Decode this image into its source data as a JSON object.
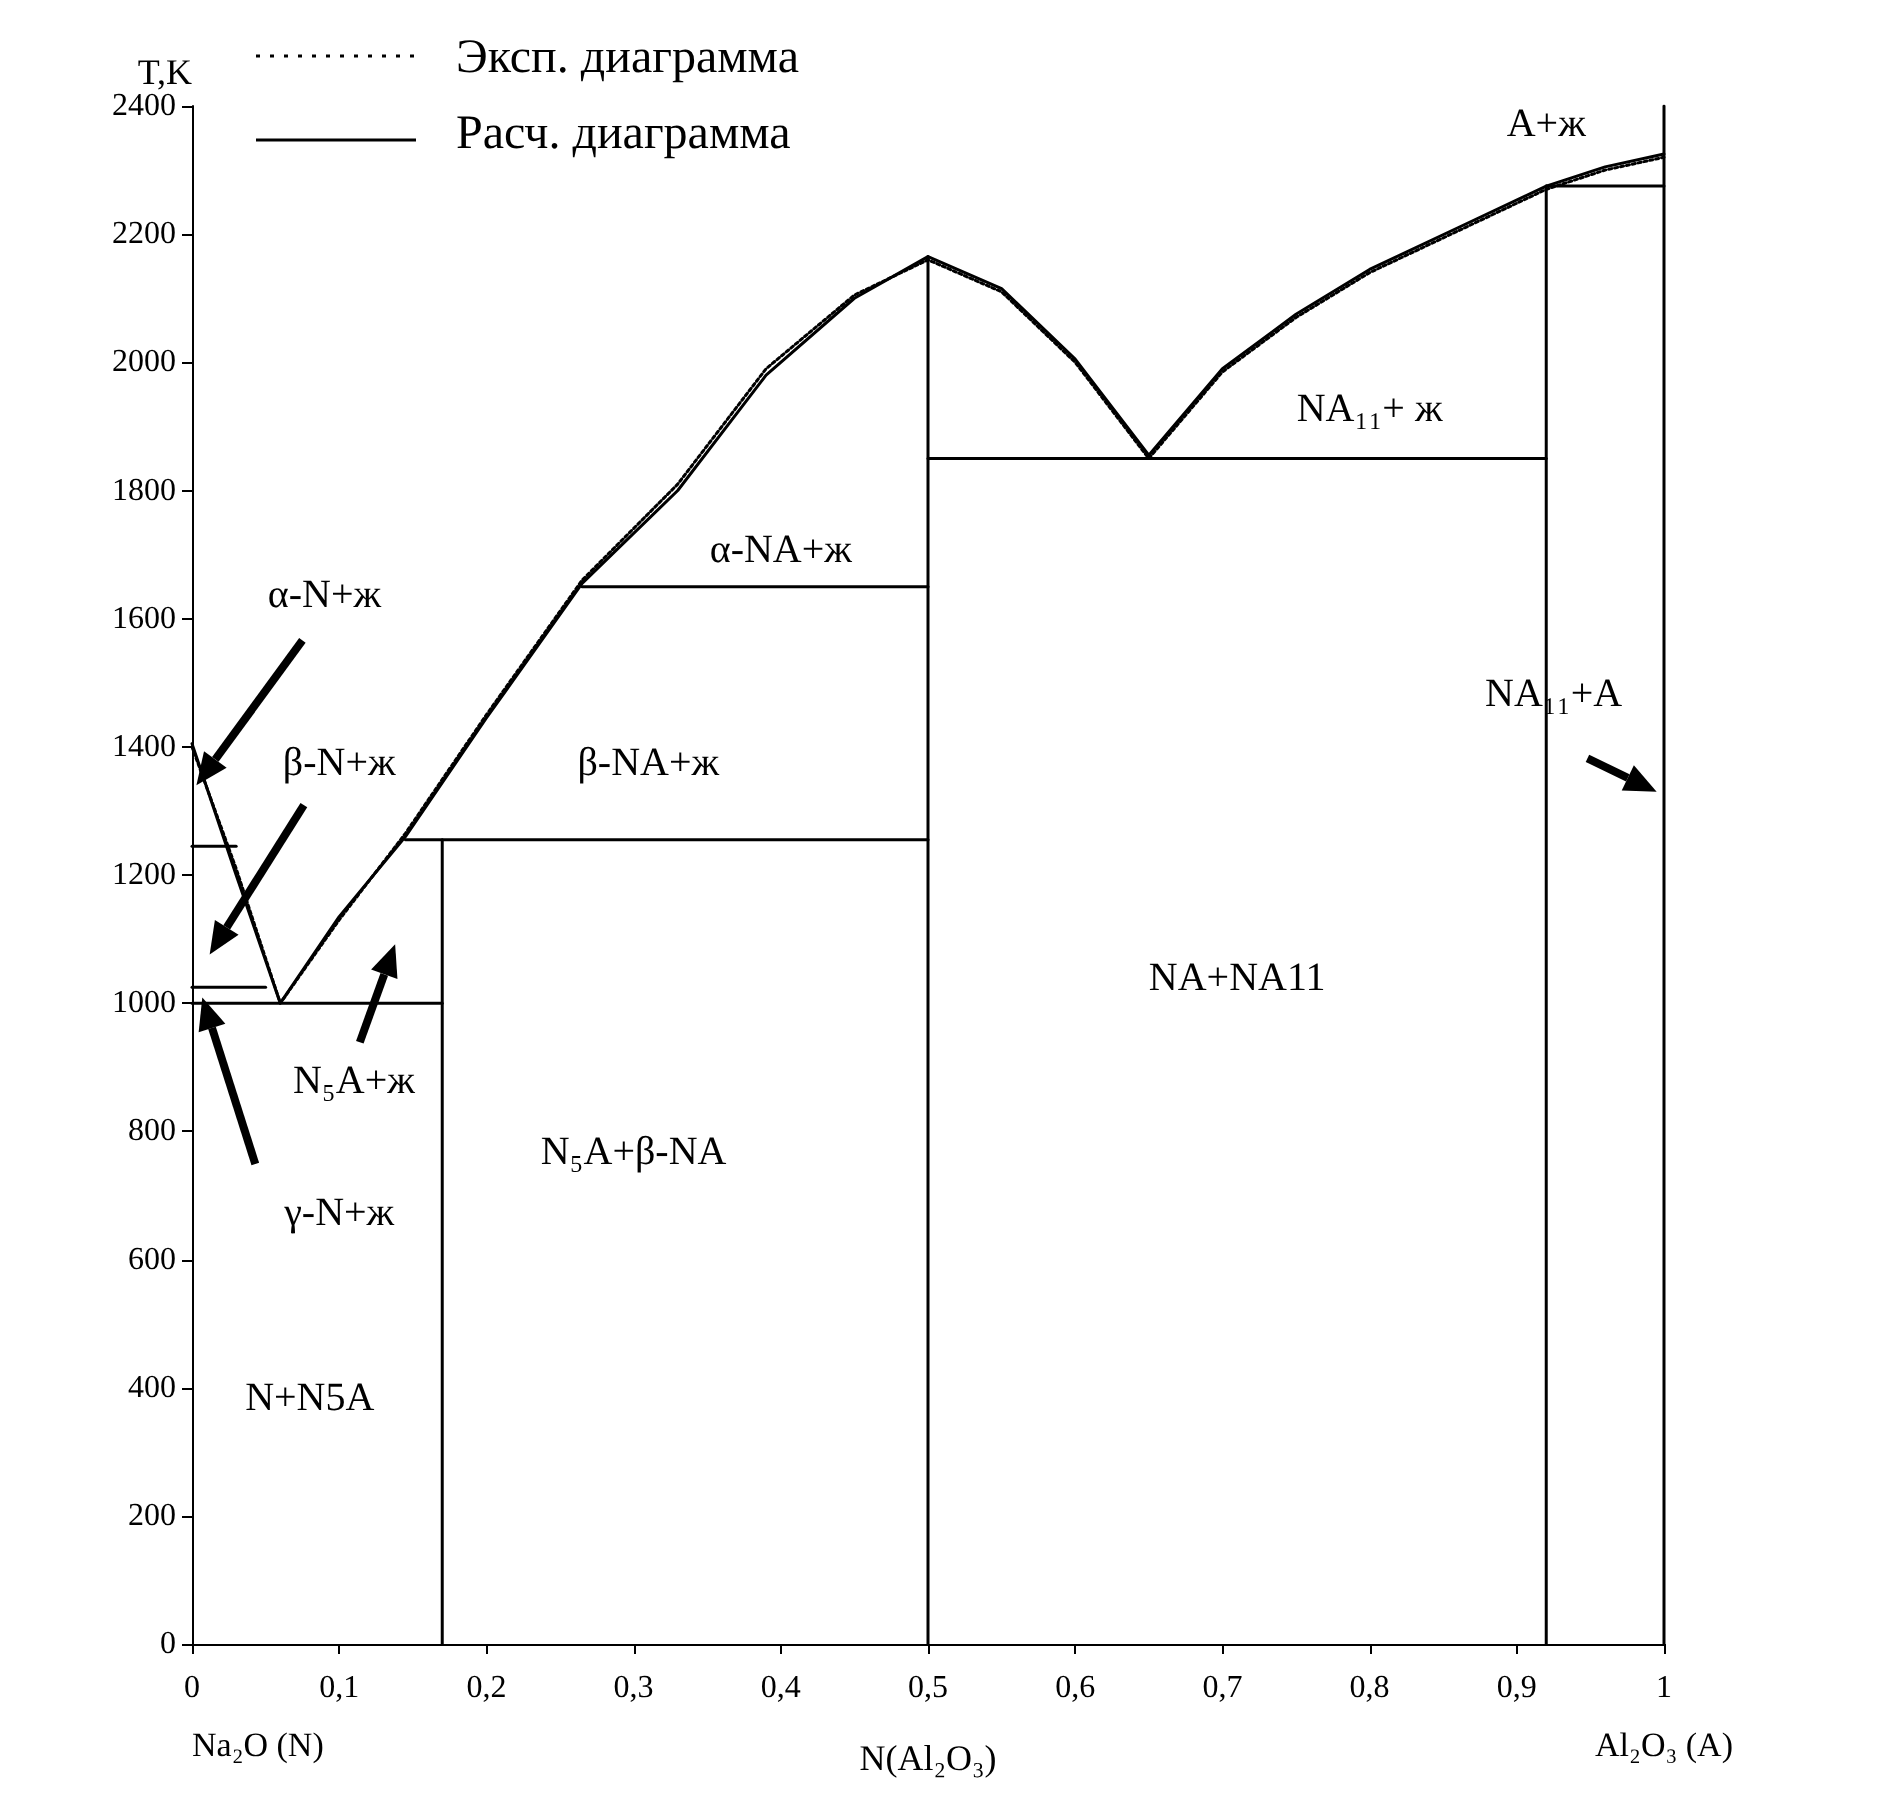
{
  "chart_data": {
    "type": "line",
    "xlabel": "N(Al₂O₃)",
    "ylabel": "T,K",
    "xlim": [
      0,
      1
    ],
    "ylim": [
      0,
      2400
    ],
    "xticks": [
      0,
      {
        "value": 0.1,
        "label": "0,1"
      },
      {
        "value": 0.2,
        "label": "0,2"
      },
      {
        "value": 0.3,
        "label": "0,3"
      },
      {
        "value": 0.4,
        "label": "0,4"
      },
      {
        "value": 0.5,
        "label": "0,5"
      },
      {
        "value": 0.6,
        "label": "0,6"
      },
      {
        "value": 0.7,
        "label": "0,7"
      },
      {
        "value": 0.8,
        "label": "0,8"
      },
      {
        "value": 0.9,
        "label": "0,9"
      },
      1
    ],
    "yticks": [
      0,
      200,
      400,
      600,
      800,
      1000,
      1200,
      1400,
      1600,
      1800,
      2000,
      2200,
      2400
    ],
    "grid": false,
    "legend": "top left",
    "marker": "none",
    "series": [
      {
        "name": "Эксп. диаграмма",
        "color": "#000000",
        "line_style": "dotted",
        "x": [
          0,
          0.03,
          0.06,
          0.1,
          0.145,
          0.2,
          0.265,
          0.33,
          0.39,
          0.45,
          0.5,
          0.55,
          0.6,
          0.65,
          0.7,
          0.75,
          0.8,
          0.86,
          0.92,
          0.96,
          1
        ],
        "values": [
          1400,
          1210,
          1000,
          1130,
          1265,
          1450,
          1660,
          1810,
          1990,
          2105,
          2160,
          2110,
          2000,
          1850,
          1985,
          2070,
          2140,
          2205,
          2270,
          2300,
          2320
        ]
      },
      {
        "name": "Расч. диаграмма",
        "color": "#000000",
        "line_style": "solid",
        "x": [
          0,
          0.03,
          0.06,
          0.1,
          0.145,
          0.2,
          0.265,
          0.33,
          0.39,
          0.45,
          0.5,
          0.55,
          0.6,
          0.65,
          0.7,
          0.75,
          0.8,
          0.86,
          0.92,
          0.96,
          1
        ],
        "values": [
          1405,
          1200,
          1000,
          1135,
          1260,
          1445,
          1655,
          1800,
          1980,
          2100,
          2165,
          2115,
          2005,
          1855,
          1990,
          2075,
          2145,
          2210,
          2275,
          2305,
          2325
        ]
      },
      {
        "color": "#000000",
        "line_style": "solid",
        "x": [
          0.17,
          0.17
        ],
        "values": [
          0,
          1255
        ]
      },
      {
        "color": "#000000",
        "line_style": "solid",
        "x": [
          0,
          0.17
        ],
        "values": [
          1000,
          1000
        ]
      },
      {
        "color": "#000000",
        "line_style": "solid",
        "x": [
          0,
          0.05
        ],
        "values": [
          1025,
          1025
        ]
      },
      {
        "color": "#000000",
        "line_style": "solid",
        "x": [
          0,
          0.03
        ],
        "values": [
          1245,
          1245
        ]
      },
      {
        "color": "#000000",
        "line_style": "solid",
        "x": [
          0.145,
          0.5
        ],
        "values": [
          1255,
          1255
        ]
      },
      {
        "color": "#000000",
        "line_style": "solid",
        "x": [
          0.265,
          0.5
        ],
        "values": [
          1650,
          1650
        ]
      },
      {
        "color": "#000000",
        "line_style": "solid",
        "x": [
          0.5,
          0.5
        ],
        "values": [
          0,
          2165
        ]
      },
      {
        "color": "#000000",
        "line_style": "solid",
        "x": [
          0.5,
          0.92
        ],
        "values": [
          1850,
          1850
        ]
      },
      {
        "color": "#000000",
        "line_style": "solid",
        "x": [
          0.92,
          0.92
        ],
        "values": [
          0,
          2275
        ]
      },
      {
        "color": "#000000",
        "line_style": "solid",
        "x": [
          0.92,
          1
        ],
        "values": [
          2275,
          2275
        ]
      },
      {
        "color": "#000000",
        "line_style": "solid",
        "x": [
          1,
          1
        ],
        "values": [
          0,
          2400
        ]
      }
    ],
    "annotations": [
      "α-N+ж",
      "β-N+ж",
      "γ-N+ж",
      "N₅A+ж",
      "N+N5A",
      "N₅A+β-NA",
      "β-NA+ж",
      "α-NA+ж",
      "NA+NA11",
      "NA₁₁+ ж",
      "NA₁₁+A",
      "A+ж",
      "Na₂O (N)",
      "Al₂O₃ (A)"
    ]
  }
}
